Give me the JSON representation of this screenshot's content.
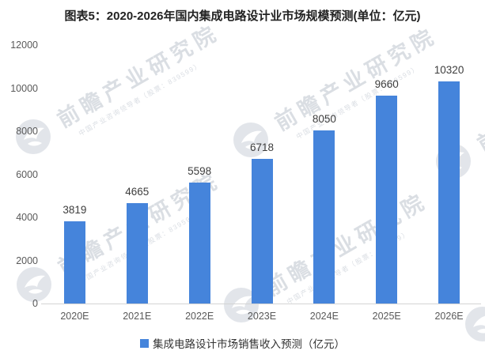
{
  "figure": {
    "title": "图表5：2020-2026年国内集成电路设计业市场规模预测(单位：亿元)"
  },
  "watermark": {
    "logo_icon": "qianzhan-bird-logo",
    "main": "前瞻产业研究院",
    "sub": "中国产业咨询领导者（股票：839599）"
  },
  "chart_data": {
    "type": "bar",
    "title": "图表5：2020-2026年国内集成电路设计业市场规模预测(单位：亿元)",
    "categories": [
      "2020E",
      "2021E",
      "2022E",
      "2023E",
      "2024E",
      "2025E",
      "2026E"
    ],
    "series": [
      {
        "name": "集成电路设计市场销售收入预测（亿元）",
        "values": [
          3819,
          4665,
          5598,
          6718,
          8050,
          9660,
          10320
        ]
      }
    ],
    "xlabel": "",
    "ylabel": "",
    "ylim": [
      0,
      12000
    ],
    "yticks": [
      0,
      2000,
      4000,
      6000,
      8000,
      10000,
      12000
    ],
    "grid": false,
    "legend_position": "bottom",
    "bar_color": "#4584DB",
    "value_label_color": "#3d3d3d",
    "tick_label_color": "#595959",
    "axis_line_color": "#d4d4d4",
    "title_color": "#222222",
    "watermark_color": "#c4cad3"
  }
}
